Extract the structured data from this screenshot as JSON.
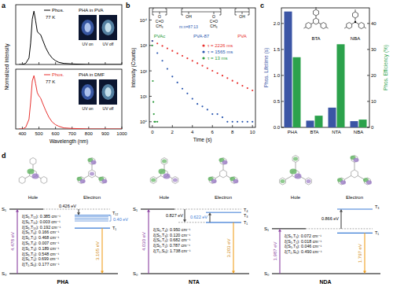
{
  "chart_data": [
    {
      "panel": "a",
      "type": "line",
      "y_label": "Normalized Intensity",
      "annotations": [
        "77 K",
        "PHA in PVA"
      ],
      "photo_labels": [
        "UV on",
        "UV off"
      ],
      "x": [
        380,
        400,
        420,
        440,
        450,
        460,
        470,
        480,
        490,
        500,
        510,
        520,
        540,
        560,
        580,
        600,
        620,
        650,
        700,
        800,
        900,
        1000
      ],
      "series": [
        {
          "name": "Phos.",
          "color": "#000000",
          "values": [
            0,
            0,
            0.02,
            0.12,
            0.4,
            0.85,
            1.0,
            0.82,
            0.62,
            0.58,
            0.56,
            0.48,
            0.32,
            0.2,
            0.12,
            0.07,
            0.04,
            0.02,
            0.01,
            0,
            0,
            0
          ]
        }
      ],
      "xlim": [
        360,
        1000
      ],
      "xticks": [
        400,
        500,
        600,
        700,
        800,
        900,
        1000
      ],
      "ylim": [
        0,
        1.12
      ],
      "tick_labels": false
    },
    {
      "type": "line",
      "x_label": "Wavelength (nm)",
      "annotations": [
        "77 K",
        "PHA in DMF"
      ],
      "photo_labels": [
        "UV on",
        "UV off"
      ],
      "x": [
        380,
        400,
        420,
        440,
        450,
        460,
        470,
        480,
        490,
        500,
        510,
        520,
        540,
        560,
        580,
        600,
        620,
        650,
        700,
        800,
        900,
        1000
      ],
      "series": [
        {
          "name": "Phos.",
          "color": "#e8312f",
          "values": [
            0,
            0,
            0.03,
            0.18,
            0.5,
            0.9,
            1.0,
            0.85,
            0.68,
            0.62,
            0.58,
            0.5,
            0.35,
            0.22,
            0.13,
            0.08,
            0.05,
            0.02,
            0.01,
            0,
            0,
            0
          ]
        }
      ],
      "xlim": [
        360,
        1000
      ],
      "xticks": [
        400,
        500,
        600,
        700,
        800,
        900,
        1000
      ],
      "ylim": [
        0,
        1.12
      ],
      "tick_labels": "x"
    },
    {
      "panel": "b",
      "type": "scatter",
      "log": "y",
      "marker": "circle",
      "legend": "upper right",
      "x_label": "Time (s)",
      "y_label": "Intensity (Counts)",
      "series": [
        {
          "name": "τ = 2226 ms",
          "color": "#e8312f",
          "x": [
            0,
            0.5,
            1,
            1.5,
            2,
            2.5,
            3,
            3.5,
            4,
            4.5,
            5,
            5.5,
            6,
            6.5,
            7,
            7.5,
            8,
            8.5,
            9,
            9.5,
            10
          ],
          "values": [
            1500,
            1198,
            957,
            765,
            611,
            488,
            390,
            311,
            248,
            199,
            159,
            127,
            101,
            81,
            65,
            52,
            41,
            33,
            26,
            21,
            17
          ]
        },
        {
          "name": "τ = 1565 ms",
          "color": "#2a57b0",
          "x": [
            0,
            0.5,
            1,
            1.5,
            2,
            2.5,
            3,
            3.5,
            4,
            4.5,
            5,
            5.5,
            6,
            6.5,
            7,
            7.5,
            8,
            8.5,
            9,
            9.5,
            10
          ],
          "values": [
            1500,
            500,
            250,
            120,
            60,
            35,
            20,
            13,
            8,
            5,
            4,
            3,
            2,
            2,
            1.5,
            1,
            1,
            1,
            1,
            1,
            1
          ]
        },
        {
          "name": "τ = 13 ms",
          "color": "#2a9a3a",
          "x": [
            0,
            0.05,
            0.1,
            0.15,
            0.2,
            0.3,
            0.5
          ],
          "values": [
            1000,
            40,
            6,
            2,
            1,
            1,
            1
          ]
        }
      ],
      "xlim": [
        -0.3,
        10.3
      ],
      "xticks": [
        0,
        2,
        4,
        6,
        8,
        10
      ],
      "ylim": [
        0.6,
        30000
      ],
      "yticks": [
        {
          "value": 1,
          "label": "10⁰"
        },
        {
          "value": 10,
          "label": "10¹"
        },
        {
          "value": 100,
          "label": "10²"
        },
        {
          "value": 1000,
          "label": "10³"
        },
        {
          "value": 10000,
          "label": "10⁴"
        }
      ],
      "structures": [
        {
          "name": "PVAc",
          "color": "#2a9a3a",
          "groups": [
            [
              "O",
              "C=O",
              "CH₃"
            ]
          ]
        },
        {
          "name": "PVA-87",
          "color": "#2a57b0",
          "groups": [
            [
              "OH"
            ],
            [
              "O",
              "C=O",
              "CH₃"
            ]
          ],
          "note": "m:n=87:13"
        },
        {
          "name": "PVA",
          "color": "#e8312f",
          "groups": [
            [
              "OH"
            ]
          ]
        }
      ]
    },
    {
      "panel": "c",
      "type": "bar",
      "categories": [
        "PHA",
        "BTA",
        "NTA",
        "NBA"
      ],
      "series": [
        {
          "color": "#3b55a5",
          "values": [
            2.23,
            0.13,
            0.38,
            0.12
          ]
        },
        {
          "color": "#2ca24c",
          "axis": "y2",
          "values": [
            27,
            4.5,
            32,
            3
          ]
        }
      ],
      "y_label": "Phos. Lifetime (s)",
      "y2_label": "Phos. Efficiency (%)",
      "ylim": [
        0,
        2.3
      ],
      "yticks": [
        {
          "value": 0,
          "label": "0.0"
        },
        {
          "value": 0.5,
          "label": "0.5"
        },
        {
          "value": 1,
          "label": "1.0"
        },
        {
          "value": 1.5,
          "label": "1.5"
        },
        {
          "value": 2,
          "label": "2.0"
        }
      ],
      "y2lim": [
        0,
        46
      ],
      "y2ticks": [
        0,
        10,
        20,
        30,
        40
      ],
      "molecule_labels": [
        "BTA",
        "NBA"
      ]
    }
  ],
  "energy_diagrams": {
    "panel": "d",
    "hole_label": "Hole",
    "electron_label": "Electron",
    "diagrams": [
      {
        "name": "PHA",
        "s0": "S₀",
        "s1": {
          "name": "S₁",
          "value": 4.478,
          "label": "4.478 eV"
        },
        "t1": {
          "name": "T₁",
          "value": 3.165,
          "label": "3.165 eV"
        },
        "t_top": [
          "T₁₂"
        ],
        "gaps": [
          {
            "value": 0.426,
            "label": "0.426 eV"
          },
          {
            "value": 0.4,
            "label": "0.40 eV"
          }
        ],
        "soc": [
          "ξ(S₁,T₁₂): 0.385 cm⁻¹",
          "ξ(S₁,T₁₁): 0.003 cm⁻¹",
          "ξ(S₁,T₁₀): 0.192 cm⁻¹",
          "ξ(S₁,T₆): 0.166 cm⁻¹",
          "ξ(S₁,T₅): 0.468 cm⁻¹",
          "ξ(S₁,T₄): 0.007 cm⁻¹",
          "ξ(S₁,T₃): 0.189 cm⁻¹",
          "ξ(S₁,T₂): 0.548 cm⁻¹",
          "ξ(S₁,T₁): 0.699 cm⁻¹",
          "ξ(T₁,S₀): 0.177 cm⁻¹"
        ]
      },
      {
        "name": "NTA",
        "s0": "S₀",
        "s1": {
          "name": "S₁",
          "value": 4.03,
          "label": "4.030 eV"
        },
        "t1": {
          "name": "T₁",
          "value": 3.203,
          "label": "3.203 eV"
        },
        "t_top": [
          "T₄",
          "T₃"
        ],
        "gaps": [
          {
            "value": 0.827,
            "label": "0.827 eV"
          },
          {
            "value": 0.622,
            "label": "0.622 eV"
          }
        ],
        "soc": [
          "ξ(S₁,T₄): 0.950 cm⁻¹",
          "ξ(S₁,T₃): 0.120 cm⁻¹",
          "ξ(S₁,T₂): 0.682 cm⁻¹",
          "ξ(S₁,T₁): 0.787 cm⁻¹",
          "ξ(T₁,S₀): 1.738 cm⁻¹"
        ]
      },
      {
        "name": "NDA",
        "s0": "S₀",
        "s1": {
          "name": "S₁",
          "value": 1.987,
          "label": "1.987 eV"
        },
        "t1": {
          "name": "T₁",
          "value": 1.797,
          "label": "1.797 eV"
        },
        "t_top": [
          "T₃"
        ],
        "gaps": [
          {
            "value": 0.866,
            "label": "0.866 eV"
          }
        ],
        "soc": [
          "ξ(S₁,T₁): 0.072 cm⁻¹",
          "ξ(S₁,T₂): 0.018 cm⁻¹",
          "ξ(S₁,T₃): 0.046 cm⁻¹",
          "ξ(T₁,S₀): 0.490 cm⁻¹"
        ]
      }
    ]
  }
}
